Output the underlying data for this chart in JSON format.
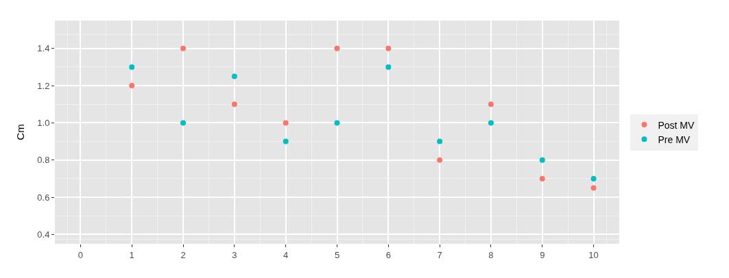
{
  "chart_data": {
    "type": "scatter",
    "ylabel": "Cm",
    "x": [
      1,
      2,
      3,
      4,
      5,
      6,
      7,
      8,
      9,
      10
    ],
    "series": [
      {
        "name": "Post MV",
        "color": "#f8766d",
        "values": [
          1.2,
          1.4,
          1.1,
          1.0,
          1.4,
          1.4,
          0.8,
          1.1,
          0.7,
          0.65
        ]
      },
      {
        "name": "Pre MV",
        "color": "#00bfc4",
        "values": [
          1.3,
          1.0,
          1.25,
          0.9,
          1.0,
          1.3,
          0.9,
          1.0,
          0.8,
          0.7
        ]
      }
    ],
    "xlim": [
      -0.5,
      10.5
    ],
    "xticks": [
      0,
      1,
      2,
      3,
      4,
      5,
      6,
      7,
      8,
      9,
      10
    ],
    "ylim": [
      0.35,
      1.55
    ],
    "yticks": [
      0.4,
      0.6,
      0.8,
      {
        "value": 1,
        "label": "1.0"
      },
      1.2,
      1.4
    ],
    "grid": true,
    "legend": "right",
    "marker": "circle"
  }
}
